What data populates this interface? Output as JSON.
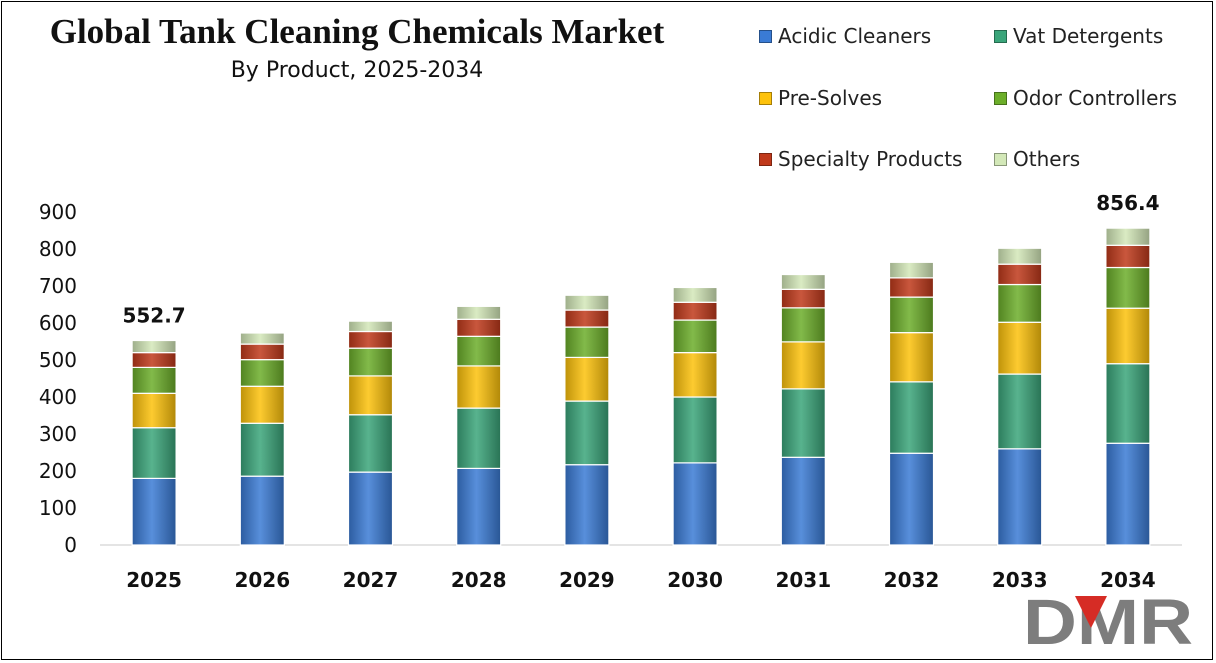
{
  "chart_data": {
    "type": "bar",
    "stacked": true,
    "title": "Global Tank Cleaning Chemicals Market",
    "subtitle": "By Product, 2025-2034",
    "categories": [
      "2025",
      "2026",
      "2027",
      "2028",
      "2029",
      "2030",
      "2031",
      "2032",
      "2033",
      "2034"
    ],
    "ylim": [
      0,
      900
    ],
    "yticks": [
      0,
      100,
      200,
      300,
      400,
      500,
      600,
      700,
      800,
      900
    ],
    "grid": false,
    "legend_position": "top-right",
    "series": [
      {
        "name": "Acidic Cleaners",
        "color": "#3a7bd5",
        "values": [
          180,
          186,
          197,
          207,
          217,
          222,
          237,
          248,
          260,
          275
        ]
      },
      {
        "name": "Vat Detergents",
        "color": "#3aa57a",
        "values": [
          137,
          143,
          155,
          163,
          172,
          178,
          185,
          193,
          202,
          215
        ]
      },
      {
        "name": "Pre-Solves",
        "color": "#fdc20c",
        "values": [
          93,
          100,
          105,
          114,
          118,
          120,
          127,
          133,
          140,
          150
        ]
      },
      {
        "name": "Odor Controllers",
        "color": "#6cae2a",
        "values": [
          70,
          72,
          75,
          80,
          82,
          88,
          92,
          96,
          102,
          110
        ]
      },
      {
        "name": "Specialty Products",
        "color": "#c0391b",
        "values": [
          40,
          42,
          45,
          46,
          46,
          48,
          50,
          52,
          55,
          60
        ]
      },
      {
        "name": "Others",
        "color": "#d3e8b8",
        "values": [
          32.7,
          30,
          28,
          35,
          40,
          40,
          40,
          42,
          43,
          46.4
        ]
      }
    ],
    "totals_labeled": {
      "2025": "552.7",
      "2034": "856.4"
    }
  },
  "logo": {
    "text": "DMR"
  }
}
